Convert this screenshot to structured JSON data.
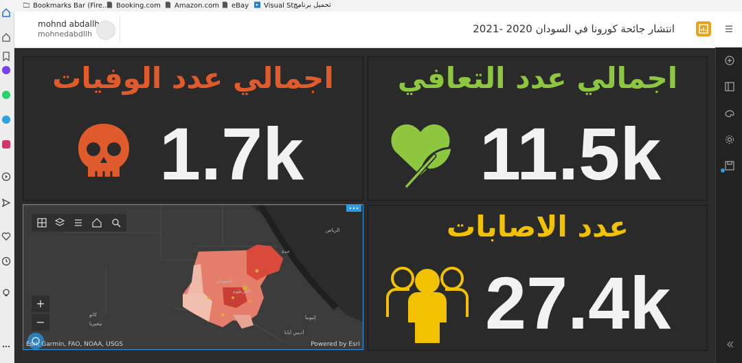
{
  "browser": {
    "bookmarks": [
      {
        "label": "Bookmarks Bar (Fire..."
      },
      {
        "label": "Booking.com"
      },
      {
        "label": "Amazon.com"
      },
      {
        "label": "eBay"
      },
      {
        "label": "Visual St..."
      },
      {
        "label": "تحميل برنامج"
      }
    ]
  },
  "header": {
    "user_name": "mohnd abdallh",
    "user_handle": "mohnedabdllh",
    "title": "انتشار جائحة كورونا في السودان 2020 -2021"
  },
  "panels": {
    "deaths": {
      "title": "اجمالي عدد الوفيات",
      "value": "1.7k",
      "color": "#e05b2c",
      "icon": "skull-icon"
    },
    "recoveries": {
      "title": "اجمالي عدد التعافي",
      "value": "11.5k",
      "color": "#8dc63f",
      "icon": "heart-leaf-icon"
    },
    "cases": {
      "title": "عدد الاصابات",
      "value": "27.4k",
      "color": "#f2c100",
      "icon": "people-icon"
    }
  },
  "map": {
    "attribution": "Esri, Garmin, FAO, NOAA, USGS",
    "powered_by": "Powered by Esri",
    "zoom_in": "+",
    "zoom_out": "−",
    "labels": {
      "riyadh": "الرياض",
      "jeddah": "جدة",
      "khartoum": "الخرطوم",
      "sudan": "السودان",
      "addis": "أديس أبابا",
      "kano": "كانو",
      "ethiopia": "إثيوبيا",
      "nigeria": "نيجيريا"
    }
  }
}
